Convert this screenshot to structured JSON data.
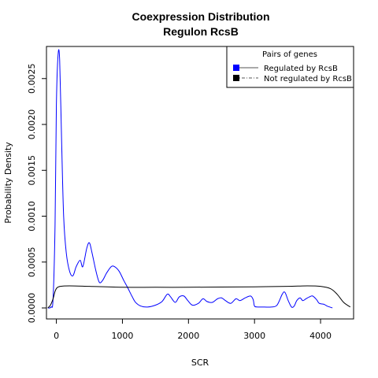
{
  "chart_data": {
    "type": "line",
    "title": "Coexpression Distribution",
    "subtitle": "Regulon RcsB",
    "xlabel": "SCR",
    "ylabel": "Probability Density",
    "xlim": [
      -150,
      4500
    ],
    "ylim": [
      -0.00012,
      0.00285
    ],
    "x_ticks": [
      0,
      1000,
      2000,
      3000,
      4000
    ],
    "x_tick_labels": [
      "0",
      "1000",
      "2000",
      "3000",
      "4000"
    ],
    "y_ticks": [
      0,
      0.0005,
      0.001,
      0.0015,
      0.002,
      0.0025
    ],
    "y_tick_labels": [
      "0.0000",
      "0.0005",
      "0.0010",
      "0.0015",
      "0.0020",
      "0.0025"
    ],
    "grid": false,
    "legend": {
      "title": "Pairs of genes",
      "position": "top-right",
      "entries": [
        {
          "label": "Regulated by  RcsB",
          "color": "#0000ff",
          "linestyle": "solid"
        },
        {
          "label": "Not regulated by  RcsB",
          "color": "#000000",
          "linestyle": "dotdash"
        }
      ]
    },
    "series": [
      {
        "name": "Regulated by  RcsB",
        "color": "#0000ff",
        "points": [
          [
            -130,
            0.0
          ],
          [
            -80,
            1e-05
          ],
          [
            -50,
            0.0001
          ],
          [
            -20,
            0.0009
          ],
          [
            0,
            0.0022
          ],
          [
            25,
            0.00275
          ],
          [
            50,
            0.0027
          ],
          [
            80,
            0.0018
          ],
          [
            110,
            0.001
          ],
          [
            150,
            0.0006
          ],
          [
            200,
            0.0004
          ],
          [
            250,
            0.00035
          ],
          [
            300,
            0.00045
          ],
          [
            360,
            0.00052
          ],
          [
            400,
            0.00045
          ],
          [
            460,
            0.00065
          ],
          [
            500,
            0.00071
          ],
          [
            540,
            0.0006
          ],
          [
            600,
            0.0004
          ],
          [
            650,
            0.00028
          ],
          [
            700,
            0.0003
          ],
          [
            760,
            0.00038
          ],
          [
            830,
            0.00045
          ],
          [
            880,
            0.00045
          ],
          [
            950,
            0.0004
          ],
          [
            1020,
            0.0003
          ],
          [
            1080,
            0.00022
          ],
          [
            1150,
            0.00012
          ],
          [
            1200,
            6e-05
          ],
          [
            1280,
            2e-05
          ],
          [
            1380,
            1e-05
          ],
          [
            1500,
            3e-05
          ],
          [
            1600,
            7e-05
          ],
          [
            1680,
            0.00015
          ],
          [
            1730,
            0.00012
          ],
          [
            1800,
            6e-05
          ],
          [
            1860,
            0.00012
          ],
          [
            1930,
            0.00013
          ],
          [
            1990,
            8e-05
          ],
          [
            2060,
            3e-05
          ],
          [
            2150,
            5e-05
          ],
          [
            2220,
            0.0001
          ],
          [
            2280,
            7e-05
          ],
          [
            2360,
            6e-05
          ],
          [
            2440,
            0.0001
          ],
          [
            2500,
            0.00011
          ],
          [
            2560,
            8e-05
          ],
          [
            2640,
            5e-05
          ],
          [
            2720,
            0.0001
          ],
          [
            2780,
            8e-05
          ],
          [
            2860,
            0.00011
          ],
          [
            2940,
            0.00013
          ],
          [
            2980,
            9e-05
          ],
          [
            3000,
            2e-05
          ],
          [
            3050,
            1e-05
          ],
          [
            3150,
            1e-05
          ],
          [
            3250,
            1e-05
          ],
          [
            3340,
            3e-05
          ],
          [
            3420,
            0.00015
          ],
          [
            3460,
            0.00017
          ],
          [
            3510,
            8e-05
          ],
          [
            3560,
            1e-05
          ],
          [
            3600,
            2e-05
          ],
          [
            3640,
            8e-05
          ],
          [
            3690,
            0.00011
          ],
          [
            3730,
            8e-05
          ],
          [
            3780,
            0.0001
          ],
          [
            3830,
            0.00012
          ],
          [
            3880,
            0.00013
          ],
          [
            3940,
            9e-05
          ],
          [
            3980,
            5e-05
          ],
          [
            4050,
            4e-05
          ],
          [
            4100,
            2e-05
          ],
          [
            4180,
            0.0
          ]
        ]
      },
      {
        "name": "Not regulated by  RcsB",
        "color": "#000000",
        "points": [
          [
            -130,
            0.0
          ],
          [
            -90,
            3e-05
          ],
          [
            -50,
            0.0001
          ],
          [
            -20,
            0.00018
          ],
          [
            10,
            0.00022
          ],
          [
            60,
            0.000235
          ],
          [
            200,
            0.00024
          ],
          [
            500,
            0.000235
          ],
          [
            1000,
            0.000225
          ],
          [
            1500,
            0.000225
          ],
          [
            2000,
            0.000225
          ],
          [
            2500,
            0.000228
          ],
          [
            3000,
            0.00023
          ],
          [
            3500,
            0.000235
          ],
          [
            3800,
            0.00024
          ],
          [
            4000,
            0.000235
          ],
          [
            4150,
            0.00021
          ],
          [
            4250,
            0.00015
          ],
          [
            4350,
            6e-05
          ],
          [
            4450,
            1e-05
          ]
        ]
      }
    ]
  }
}
